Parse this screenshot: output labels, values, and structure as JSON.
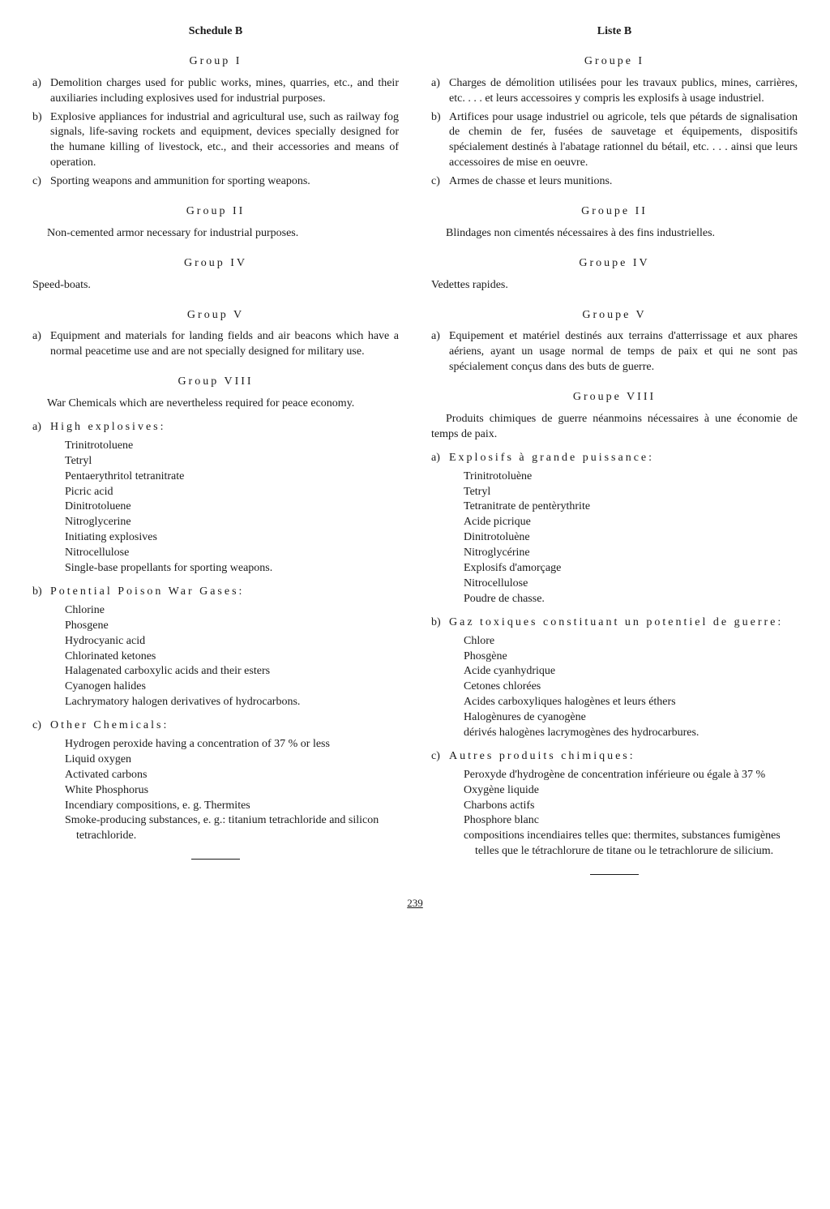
{
  "page_number": "239",
  "left": {
    "title": "Schedule B",
    "groups": [
      {
        "heading": "Group I",
        "items": [
          {
            "label": "a)",
            "text": "Demolition charges used for public works, mines, quarries, etc., and their auxiliaries including explosives used for industrial purposes."
          },
          {
            "label": "b)",
            "text": "Explosive appliances for industrial and agricultural use, such as railway fog signals, life-saving rockets and equipment, devices specially designed for the humane killing of livestock, etc., and their accessories and means of operation."
          },
          {
            "label": "c)",
            "text": "Sporting weapons and ammunition for sporting weapons."
          }
        ]
      },
      {
        "heading": "Group II",
        "para": "Non-cemented armor necessary for industrial purposes."
      },
      {
        "heading": "Group IV",
        "plain": "Speed-boats."
      },
      {
        "heading": "Group V",
        "items": [
          {
            "label": "a)",
            "text": "Equipment and materials for landing fields and air beacons which have a normal peacetime use and are not specially designed for military use."
          }
        ]
      },
      {
        "heading": "Group VIII",
        "para": "War Chemicals which are nevertheless required for peace economy.",
        "subs": [
          {
            "label": "a)",
            "title": "High explosives:",
            "list": [
              "Trinitrotoluene",
              "Tetryl",
              "Pentaerythritol tetranitrate",
              "Picric acid",
              "Dinitrotoluene",
              "Nitroglycerine",
              "Initiating explosives",
              "Nitrocellulose",
              "Single-base propellants for sporting weapons."
            ]
          },
          {
            "label": "b)",
            "title": "Potential Poison War Gases:",
            "list": [
              "Chlorine",
              "Phosgene",
              "Hydrocyanic acid",
              "Chlorinated ketones",
              "Halagenated carboxylic acids and their esters",
              "Cyanogen halides",
              "Lachrymatory halogen derivatives of hydrocarbons."
            ]
          },
          {
            "label": "c)",
            "title": "Other Chemicals:",
            "list": [
              "Hydrogen peroxide having a concentration of 37 % or less",
              "Liquid oxygen",
              "Activated carbons",
              "White Phosphorus",
              "Incendiary compositions, e. g. Thermites",
              "Smoke-producing substances, e. g.: titanium tetrachloride and silicon tetrachloride."
            ]
          }
        ]
      }
    ]
  },
  "right": {
    "title": "Liste B",
    "groups": [
      {
        "heading": "Groupe I",
        "items": [
          {
            "label": "a)",
            "text": "Charges de démolition utilisées pour les travaux publics, mines, carrières, etc. . . . et leurs accessoires y compris les explosifs à usage industriel."
          },
          {
            "label": "b)",
            "text": "Artifices pour usage industriel ou agricole, tels que pétards de signalisation de chemin de fer, fusées de sauvetage et équipements, dispositifs spécialement destinés à l'abatage rationnel du bétail, etc. . . . ainsi que leurs accessoires de mise en oeuvre."
          },
          {
            "label": "c)",
            "text": "Armes de chasse et leurs munitions."
          }
        ]
      },
      {
        "heading": "Groupe II",
        "para": "Blindages non cimentés nécessaires à des fins industrielles."
      },
      {
        "heading": "Groupe IV",
        "plain": "Vedettes rapides."
      },
      {
        "heading": "Groupe V",
        "items": [
          {
            "label": "a)",
            "text": "Equipement et matériel destinés aux terrains d'atterrissage et aux phares aériens, ayant un usage normal de temps de paix et qui ne sont pas spécialement conçus dans des buts de guerre."
          }
        ]
      },
      {
        "heading": "Groupe VIII",
        "para": "Produits chimiques de guerre néanmoins nécessaires à une économie de temps de paix.",
        "subs": [
          {
            "label": "a)",
            "title": "Explosifs à grande puissance:",
            "list": [
              "Trinitrotoluène",
              "Tetryl",
              "Tetranitrate de pentèrythrite",
              "Acide picrique",
              "Dinitrotoluène",
              "Nitroglycérine",
              "Explosifs d'amorçage",
              "Nitrocellulose",
              "Poudre de chasse."
            ]
          },
          {
            "label": "b)",
            "title": "Gaz toxiques constituant un potentiel de guerre:",
            "list": [
              "Chlore",
              "Phosgène",
              "Acide cyanhydrique",
              "Cetones chlorées",
              "Acides carboxyliques halogènes et leurs éthers",
              "Halogènures de cyanogène",
              "dérivés halogènes lacrymogènes des hydrocarbures."
            ]
          },
          {
            "label": "c)",
            "title": "Autres produits chimiques:",
            "list": [
              "Peroxyde d'hydrogène de concentration inférieure ou égale à 37 %",
              "Oxygène liquide",
              "Charbons actifs",
              "Phosphore blanc",
              "compositions incendiaires telles que: thermites, substances fumigènes telles que le tétrachlorure de titane ou le tetrachlorure de silicium."
            ]
          }
        ]
      }
    ]
  }
}
